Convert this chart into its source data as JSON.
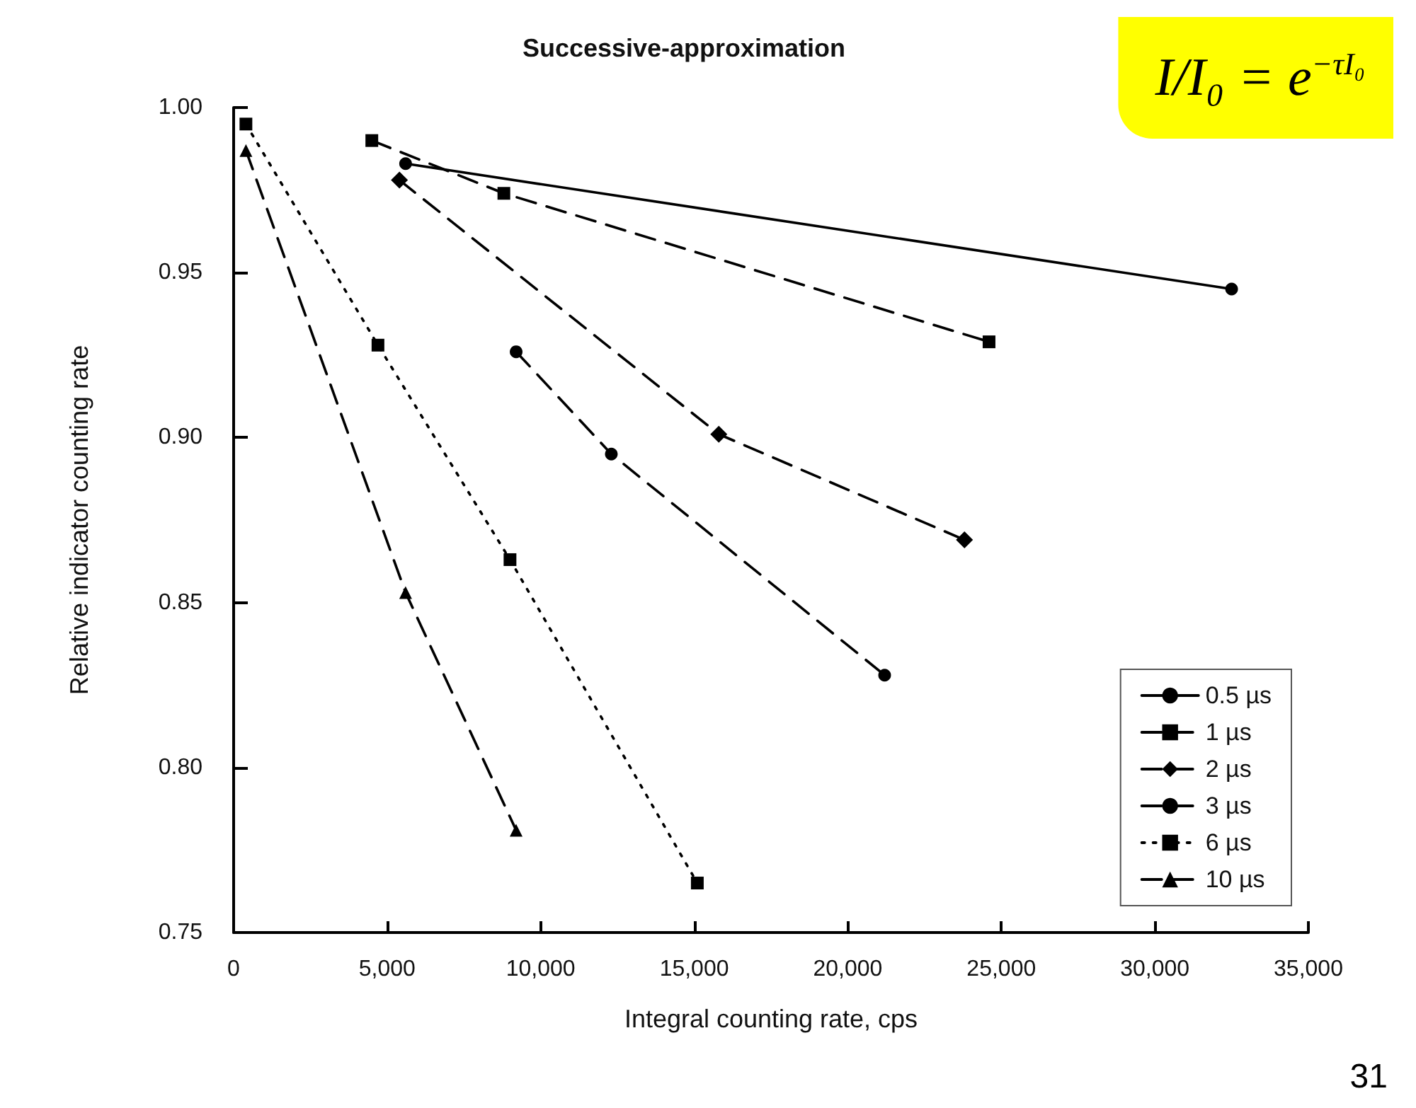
{
  "chart_data": {
    "type": "line",
    "title": "Successive-approximation",
    "xlabel": "Integral counting rate, cps",
    "ylabel": "Relative indicator counting rate",
    "annotations": [
      "I/I₀ = e$^{−τI₀}$",
      "31"
    ],
    "xlim": [
      0,
      35000
    ],
    "xticks": [
      0,
      {
        "value": 5000,
        "label": "5,000"
      },
      {
        "value": 10000,
        "label": "10,000"
      },
      {
        "value": 15000,
        "label": "15,000"
      },
      {
        "value": 20000,
        "label": "20,000"
      },
      {
        "value": 25000,
        "label": "25,000"
      },
      {
        "value": 30000,
        "label": "30,000"
      },
      {
        "value": 35000,
        "label": "35,000"
      }
    ],
    "ylim": [
      0.75,
      1.0
    ],
    "yticks": [
      {
        "value": 0.75,
        "label": "0.75"
      },
      {
        "value": 0.8,
        "label": "0.80"
      },
      {
        "value": 0.85,
        "label": "0.85"
      },
      {
        "value": 0.9,
        "label": "0.90"
      },
      {
        "value": 0.95,
        "label": "0.95"
      },
      {
        "value": 1.0,
        "label": "1.00"
      }
    ],
    "grid": false,
    "legend": "bottom right",
    "series": [
      {
        "name": "0.5 µs",
        "color": "#000000",
        "marker": "circle",
        "line_style": "solid",
        "x": [
          5600,
          32500
        ],
        "values": [
          0.983,
          0.945
        ]
      },
      {
        "name": "1 µs",
        "color": "#000000",
        "marker": "square",
        "line_style": "dashed",
        "x": [
          4500,
          8800,
          24600
        ],
        "values": [
          0.99,
          0.974,
          0.929
        ]
      },
      {
        "name": "2 µs",
        "color": "#000000",
        "marker": "diamond",
        "line_style": "dashed",
        "x": [
          5400,
          15800,
          23800
        ],
        "values": [
          0.978,
          0.901,
          0.869
        ]
      },
      {
        "name": "3 µs",
        "color": "#000000",
        "marker": "circle",
        "line_style": "dashed",
        "x": [
          9200,
          12300,
          21200
        ],
        "values": [
          0.926,
          0.895,
          0.828
        ]
      },
      {
        "name": "6 µs",
        "color": "#000000",
        "marker": "square",
        "line_style": "dotted",
        "x": [
          400,
          4700,
          9000,
          15100
        ],
        "values": [
          0.995,
          0.928,
          0.863,
          0.765
        ]
      },
      {
        "name": "10 µs",
        "color": "#000000",
        "marker": "triangle",
        "line_style": "dashed",
        "x": [
          400,
          5600,
          9200
        ],
        "values": [
          0.987,
          0.853,
          0.781
        ]
      }
    ]
  }
}
